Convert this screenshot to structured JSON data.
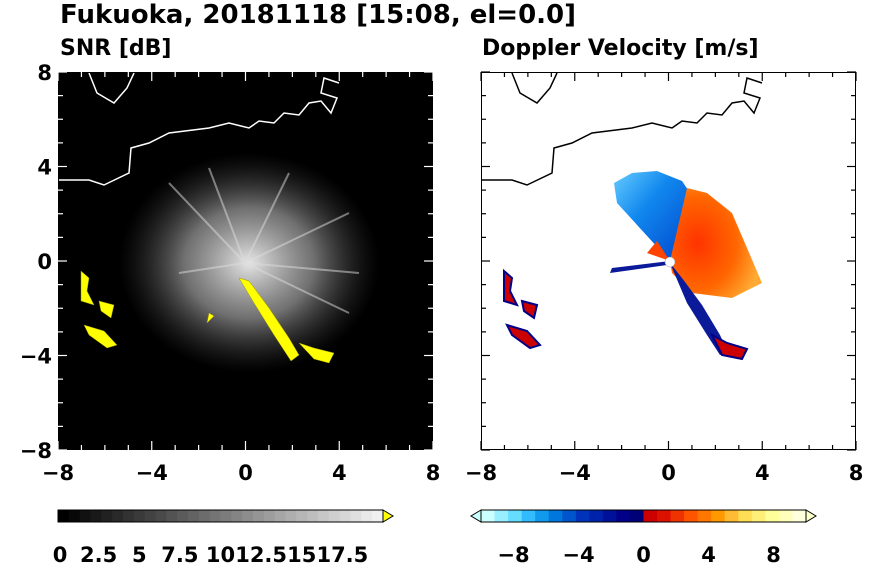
{
  "title": "Fukuoka, 20181118 [15:08, el=0.0]",
  "chart_data": [
    {
      "type": "heatmap",
      "title": "SNR [dB]",
      "xlim": [
        -8,
        8
      ],
      "ylim": [
        -8,
        8
      ],
      "x_ticks": [
        "−8",
        "−4",
        "0",
        "4",
        "8"
      ],
      "y_ticks": [
        "8",
        "4",
        "0",
        "−4",
        "−8"
      ],
      "colorbar": {
        "range": [
          0,
          20
        ],
        "extend": "max",
        "tick_labels": [
          "0",
          "2.5",
          "5",
          "7.5",
          "10",
          "12.5",
          "15",
          "17.5"
        ],
        "colors": {
          "low": "#000000",
          "high": "#ffffff",
          "extend": "#ffff00"
        }
      },
      "echo_color": "#ffff00"
    },
    {
      "type": "heatmap",
      "title": "Doppler Velocity [m/s]",
      "xlim": [
        -8,
        8
      ],
      "ylim": [
        -8,
        8
      ],
      "x_ticks": [
        "−8",
        "−4",
        "0",
        "4",
        "8"
      ],
      "y_ticks": [
        "8",
        "4",
        "0",
        "−4",
        "−8"
      ],
      "colorbar": {
        "range": [
          -10,
          10
        ],
        "extend": "both",
        "tick_labels": [
          "−8",
          "−4",
          "0",
          "4",
          "8"
        ],
        "colors": {
          "negative": "#0000aa",
          "positive": "#ff3300",
          "max": "#ffffcc",
          "min": "#ccffff"
        }
      }
    }
  ]
}
